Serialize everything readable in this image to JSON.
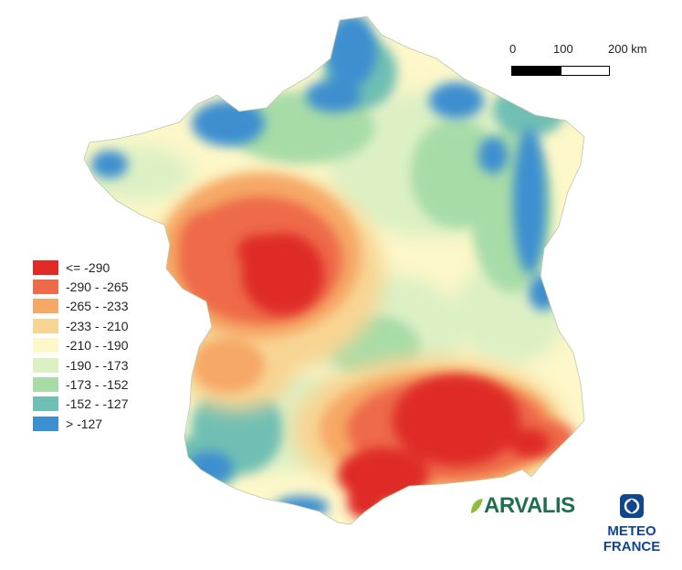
{
  "legend": {
    "items": [
      {
        "label": "<= -290",
        "color": "#df2a26"
      },
      {
        "label": "-290 - -265",
        "color": "#ee6a4a"
      },
      {
        "label": "-265 - -233",
        "color": "#f6a866"
      },
      {
        "label": "-233 - -210",
        "color": "#f8d493"
      },
      {
        "label": "-210 - -190",
        "color": "#fdf7c9"
      },
      {
        "label": "-190 - -173",
        "color": "#dcf0c4"
      },
      {
        "label": "-173 - -152",
        "color": "#a7dca7"
      },
      {
        "label": "-152 - -127",
        "color": "#6fbfb4"
      },
      {
        "label": "> -127",
        "color": "#3e8fd0"
      }
    ]
  },
  "scale": {
    "labels": [
      "0",
      "100",
      "200 km"
    ]
  },
  "logos": {
    "arvalis": "ARVALIS",
    "meteo_line1": "METEO",
    "meteo_line2": "FRANCE"
  }
}
